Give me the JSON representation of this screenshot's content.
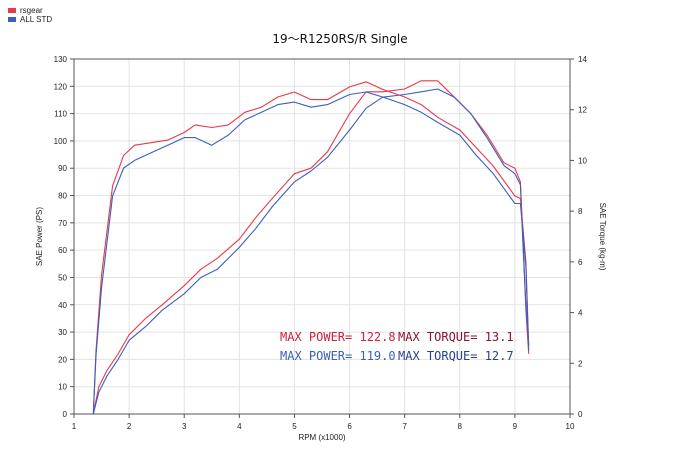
{
  "legend": {
    "entries": [
      {
        "label": "rsgear",
        "color": "#e8394a"
      },
      {
        "label": "ALL STD",
        "color": "#3b5fbf"
      }
    ]
  },
  "annotations": {
    "rsgear_power": "MAX POWER= 122.8",
    "rsgear_torque": "MAX TORQUE= 13.1",
    "std_power": "MAX POWER= 119.0",
    "std_torque": "MAX TORQUE= 12.7"
  },
  "chart_data": {
    "type": "line",
    "title": "19～R1250RS/R Single",
    "xlabel": "RPM (x1000)",
    "ylabel_left": "SAE Power (PS)",
    "ylabel_right": "SAE Torque (kg-m)",
    "xlim": [
      1,
      10
    ],
    "ylim_left": [
      0,
      130
    ],
    "ylim_right": [
      0,
      14
    ],
    "xticks": [
      "1",
      "2",
      "3",
      "4",
      "5",
      "6",
      "7",
      "8",
      "9",
      "10"
    ],
    "yticks_left": [
      "0",
      "10",
      "20",
      "30",
      "40",
      "50",
      "60",
      "70",
      "80",
      "90",
      "100",
      "110",
      "120",
      "130"
    ],
    "yticks_right": [
      "0",
      "2",
      "4",
      "6",
      "8",
      "10",
      "12",
      "14"
    ],
    "grid": true,
    "series": [
      {
        "name": "rsgear",
        "axis": "left",
        "kind": "power",
        "color": "#e8394a",
        "x": [
          1.35,
          1.45,
          1.6,
          1.8,
          2.0,
          2.3,
          2.6,
          3.0,
          3.3,
          3.6,
          4.0,
          4.3,
          4.6,
          5.0,
          5.3,
          5.6,
          6.0,
          6.3,
          6.6,
          7.0,
          7.3,
          7.6,
          7.9,
          8.2,
          8.5,
          8.8,
          9.0,
          9.1,
          9.15,
          9.2,
          9.25
        ],
        "y": [
          0,
          10,
          16,
          22,
          29,
          35,
          40,
          47,
          53,
          57,
          64,
          72,
          79,
          88,
          90,
          96,
          110,
          118,
          118,
          119,
          122,
          122,
          116,
          110,
          102,
          92,
          90,
          85,
          62,
          38,
          22
        ]
      },
      {
        "name": "ALL STD",
        "axis": "left",
        "kind": "power",
        "color": "#3b5fbf",
        "x": [
          1.35,
          1.45,
          1.6,
          1.8,
          2.0,
          2.3,
          2.6,
          3.0,
          3.3,
          3.6,
          4.0,
          4.3,
          4.6,
          5.0,
          5.3,
          5.6,
          6.0,
          6.3,
          6.6,
          7.0,
          7.3,
          7.6,
          7.9,
          8.2,
          8.5,
          8.8,
          9.0,
          9.1,
          9.15,
          9.2,
          9.25
        ],
        "y": [
          0,
          8,
          14,
          20,
          27,
          32,
          38,
          44,
          50,
          53,
          61,
          68,
          76,
          85,
          89,
          94,
          104,
          112,
          116,
          117,
          118,
          119,
          116,
          110,
          101,
          91,
          88,
          84,
          60,
          40,
          25
        ]
      },
      {
        "name": "rsgear",
        "axis": "right",
        "kind": "torque",
        "color": "#e8394a",
        "x": [
          1.35,
          1.4,
          1.5,
          1.7,
          1.9,
          2.1,
          2.4,
          2.7,
          3.0,
          3.2,
          3.5,
          3.8,
          4.1,
          4.4,
          4.7,
          5.0,
          5.3,
          5.6,
          6.0,
          6.3,
          6.6,
          7.0,
          7.3,
          7.6,
          8.0,
          8.3,
          8.6,
          9.0,
          9.1,
          9.2,
          9.25
        ],
        "y": [
          0,
          2.5,
          5.5,
          9.0,
          10.2,
          10.6,
          10.7,
          10.8,
          11.1,
          11.4,
          11.3,
          11.4,
          11.9,
          12.1,
          12.5,
          12.7,
          12.4,
          12.4,
          12.9,
          13.1,
          12.8,
          12.5,
          12.2,
          11.7,
          11.2,
          10.5,
          9.8,
          8.6,
          8.5,
          6.0,
          2.7
        ]
      },
      {
        "name": "ALL STD",
        "axis": "right",
        "kind": "torque",
        "color": "#3b5fbf",
        "x": [
          1.35,
          1.4,
          1.5,
          1.7,
          1.9,
          2.1,
          2.4,
          2.7,
          3.0,
          3.2,
          3.5,
          3.8,
          4.1,
          4.4,
          4.7,
          5.0,
          5.3,
          5.6,
          6.0,
          6.3,
          6.6,
          7.0,
          7.3,
          7.6,
          8.0,
          8.3,
          8.6,
          9.0,
          9.1,
          9.2,
          9.25
        ],
        "y": [
          0,
          2.3,
          5.0,
          8.6,
          9.7,
          10.0,
          10.3,
          10.6,
          10.9,
          10.9,
          10.6,
          11.0,
          11.6,
          11.9,
          12.2,
          12.3,
          12.1,
          12.2,
          12.6,
          12.7,
          12.5,
          12.2,
          11.9,
          11.5,
          11.0,
          10.2,
          9.5,
          8.3,
          8.3,
          5.8,
          2.5
        ]
      }
    ]
  }
}
